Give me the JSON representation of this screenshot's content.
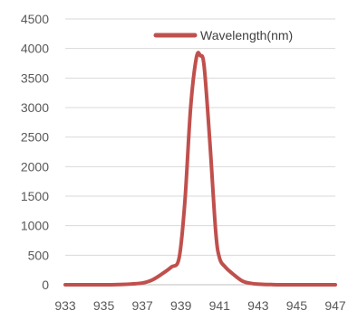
{
  "chart_data": {
    "type": "line",
    "title": "",
    "xlabel": "",
    "ylabel": "",
    "xlim": [
      933,
      947
    ],
    "ylim": [
      0,
      4500
    ],
    "x_ticks": [
      933,
      935,
      937,
      939,
      941,
      943,
      945,
      947
    ],
    "y_ticks": [
      0,
      500,
      1000,
      1500,
      2000,
      2500,
      3000,
      3500,
      4000,
      4500
    ],
    "grid": "horizontal",
    "legend_position": "top-right",
    "series": [
      {
        "name": "Wavelength(nm)",
        "color": "#c0504d",
        "x": [
          933,
          934,
          935,
          936,
          936.5,
          937,
          937.5,
          938,
          938.5,
          938.9,
          939.2,
          939.5,
          939.8,
          940.0,
          940.2,
          940.5,
          940.8,
          941.0,
          941.3,
          941.7,
          942.2,
          942.7,
          943.2,
          943.7,
          944.2,
          945,
          946,
          947
        ],
        "y": [
          0,
          0,
          0,
          5,
          15,
          30,
          80,
          180,
          300,
          450,
          1400,
          3000,
          3850,
          3880,
          3700,
          2400,
          900,
          450,
          300,
          180,
          60,
          20,
          8,
          3,
          0,
          0,
          0,
          0
        ]
      }
    ]
  }
}
